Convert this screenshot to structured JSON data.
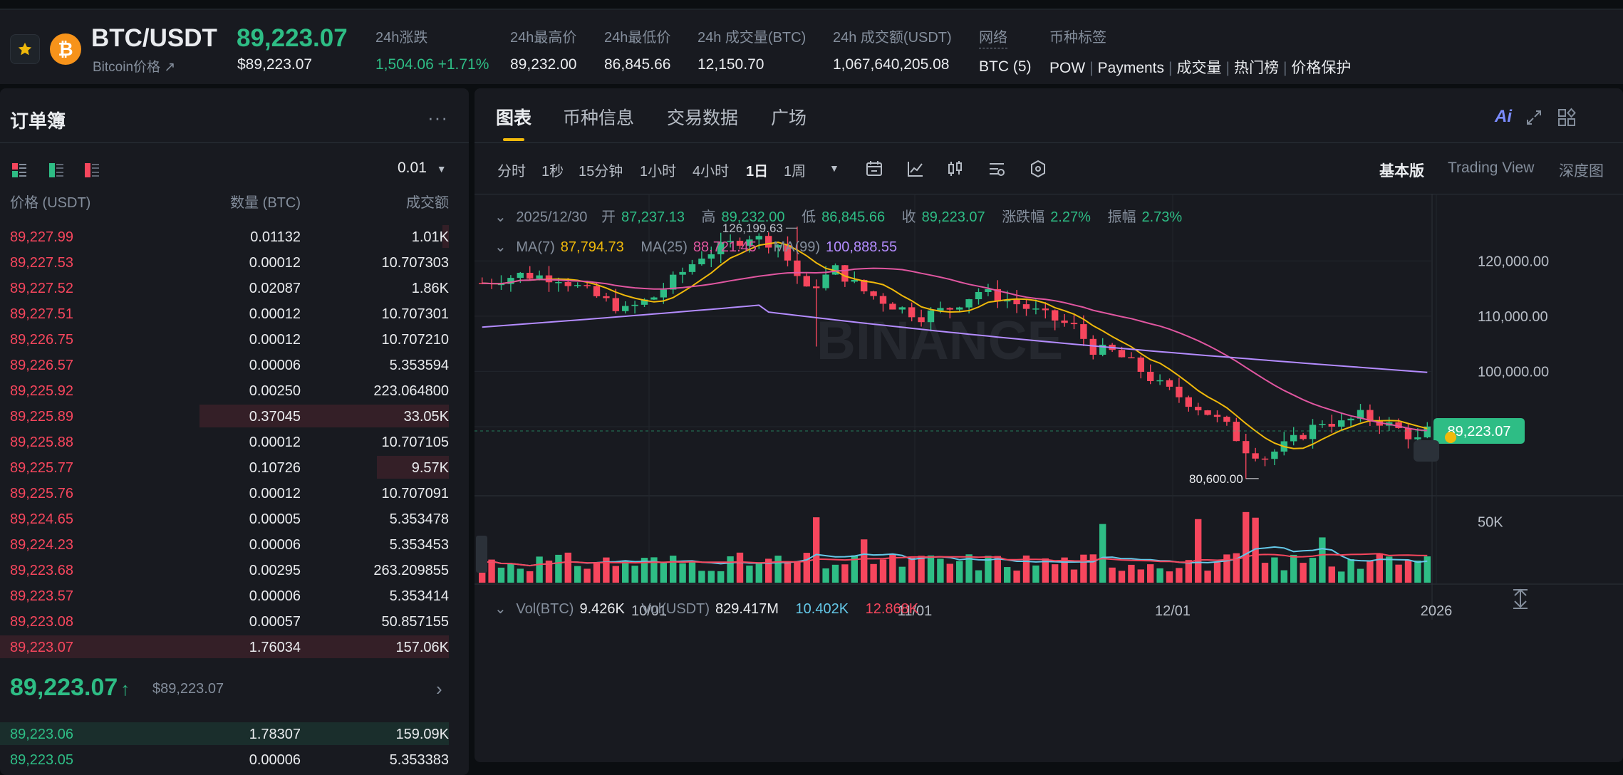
{
  "header": {
    "pair": "BTC/USDT",
    "pair_sub": "Bitcoin价格 ↗",
    "coin_letter": "₿",
    "last_price": "89,223.07",
    "last_price_usd": "$89,223.07",
    "stats": [
      {
        "label": "24h涨跌",
        "value": "1,504.06 +1.71%",
        "green": true
      },
      {
        "label": "24h最高价",
        "value": "89,232.00"
      },
      {
        "label": "24h最低价",
        "value": "86,845.66"
      },
      {
        "label": "24h 成交量(BTC)",
        "value": "12,150.70"
      },
      {
        "label": "24h 成交额(USDT)",
        "value": "1,067,640,205.08"
      },
      {
        "label": "网络",
        "value": "BTC (5)"
      }
    ],
    "tags_label": "币种标签",
    "tags": [
      "POW",
      "Payments",
      "成交量",
      "热门榜",
      "价格保护"
    ]
  },
  "orderbook": {
    "title": "订单簿",
    "more": "···",
    "tick": "0.01",
    "col_price": "价格 (USDT)",
    "col_qty": "数量 (BTC)",
    "col_total": "成交额",
    "asks": [
      {
        "price": "89,227.99",
        "qty": "0.01132",
        "total": "1.01K",
        "depth": 0.02
      },
      {
        "price": "89,227.53",
        "qty": "0.00012",
        "total": "10.707303",
        "depth": 0
      },
      {
        "price": "89,227.52",
        "qty": "0.02087",
        "total": "1.86K",
        "depth": 0
      },
      {
        "price": "89,227.51",
        "qty": "0.00012",
        "total": "10.707301",
        "depth": 0
      },
      {
        "price": "89,226.75",
        "qty": "0.00012",
        "total": "10.707210",
        "depth": 0
      },
      {
        "price": "89,226.57",
        "qty": "0.00006",
        "total": "5.353594",
        "depth": 0
      },
      {
        "price": "89,225.92",
        "qty": "0.00250",
        "total": "223.064800",
        "depth": 0
      },
      {
        "price": "89,225.89",
        "qty": "0.37045",
        "total": "33.05K",
        "depth": 0.76
      },
      {
        "price": "89,225.88",
        "qty": "0.00012",
        "total": "10.707105",
        "depth": 0
      },
      {
        "price": "89,225.77",
        "qty": "0.10726",
        "total": "9.57K",
        "depth": 0.22
      },
      {
        "price": "89,225.76",
        "qty": "0.00012",
        "total": "10.707091",
        "depth": 0
      },
      {
        "price": "89,224.65",
        "qty": "0.00005",
        "total": "5.353478",
        "depth": 0
      },
      {
        "price": "89,224.23",
        "qty": "0.00006",
        "total": "5.353453",
        "depth": 0
      },
      {
        "price": "89,223.68",
        "qty": "0.00295",
        "total": "263.209855",
        "depth": 0
      },
      {
        "price": "89,223.57",
        "qty": "0.00006",
        "total": "5.353414",
        "depth": 0
      },
      {
        "price": "89,223.08",
        "qty": "0.00057",
        "total": "50.857155",
        "depth": 0
      },
      {
        "price": "89,223.07",
        "qty": "1.76034",
        "total": "157.06K",
        "depth": 1.0
      }
    ],
    "mid_price": "89,223.07",
    "mid_arrow": "↑",
    "mid_usd": "$89,223.07",
    "bids": [
      {
        "price": "89,223.06",
        "qty": "1.78307",
        "total": "159.09K",
        "depth": 1.0
      },
      {
        "price": "89,223.05",
        "qty": "0.00006",
        "total": "5.353383",
        "depth": 0
      }
    ]
  },
  "chart_panel": {
    "tabs": [
      "图表",
      "币种信息",
      "交易数据",
      "广场"
    ],
    "timeframes": [
      "分时",
      "1秒",
      "15分钟",
      "1小时",
      "4小时",
      "1日",
      "1周"
    ],
    "active_timeframe": "1日",
    "view_modes": [
      "基本版",
      "Trading View",
      "深度图"
    ],
    "ai_label": "Ai",
    "ohlc": {
      "date": "2025/12/30",
      "open_k": "开",
      "open": "87,237.13",
      "high_k": "高",
      "high": "89,232.00",
      "low_k": "低",
      "low": "86,845.66",
      "close_k": "收",
      "close": "89,223.07",
      "chg_k": "涨跌幅",
      "chg": "2.27%",
      "amp_k": "振幅",
      "amp": "2.73%"
    },
    "ma": {
      "ma7_k": "MA(7)",
      "ma7": "87,794.73",
      "ma25_k": "MA(25)",
      "ma25": "88,721.45",
      "ma99_k": "MA(99)",
      "ma99": "100,888.55"
    },
    "vol": {
      "k": "Vol(BTC)",
      "btc": "9.426K",
      "usdt_k": "Vol(USDT)",
      "usdt": "829.417M",
      "v1": "10.402K",
      "v2": "12.868K"
    },
    "watermark": "BINANCE",
    "high_marker": "126,199.63",
    "low_marker": "80,600.00",
    "y_ticks": [
      "120,000.00",
      "110,000.00",
      "100,000.00"
    ],
    "current_price_tag": "89,223.07",
    "vol_tick": "50K",
    "x_ticks": [
      "10/01",
      "11/01",
      "12/01",
      "2026"
    ]
  },
  "colors": {
    "up": "#2ebd85",
    "down": "#f6465d",
    "accent": "#f0b90b",
    "ma7": "#f0b90b",
    "ma25": "#e056a0",
    "ma99": "#b48cff",
    "vol_ma": "#64c8e8"
  }
}
